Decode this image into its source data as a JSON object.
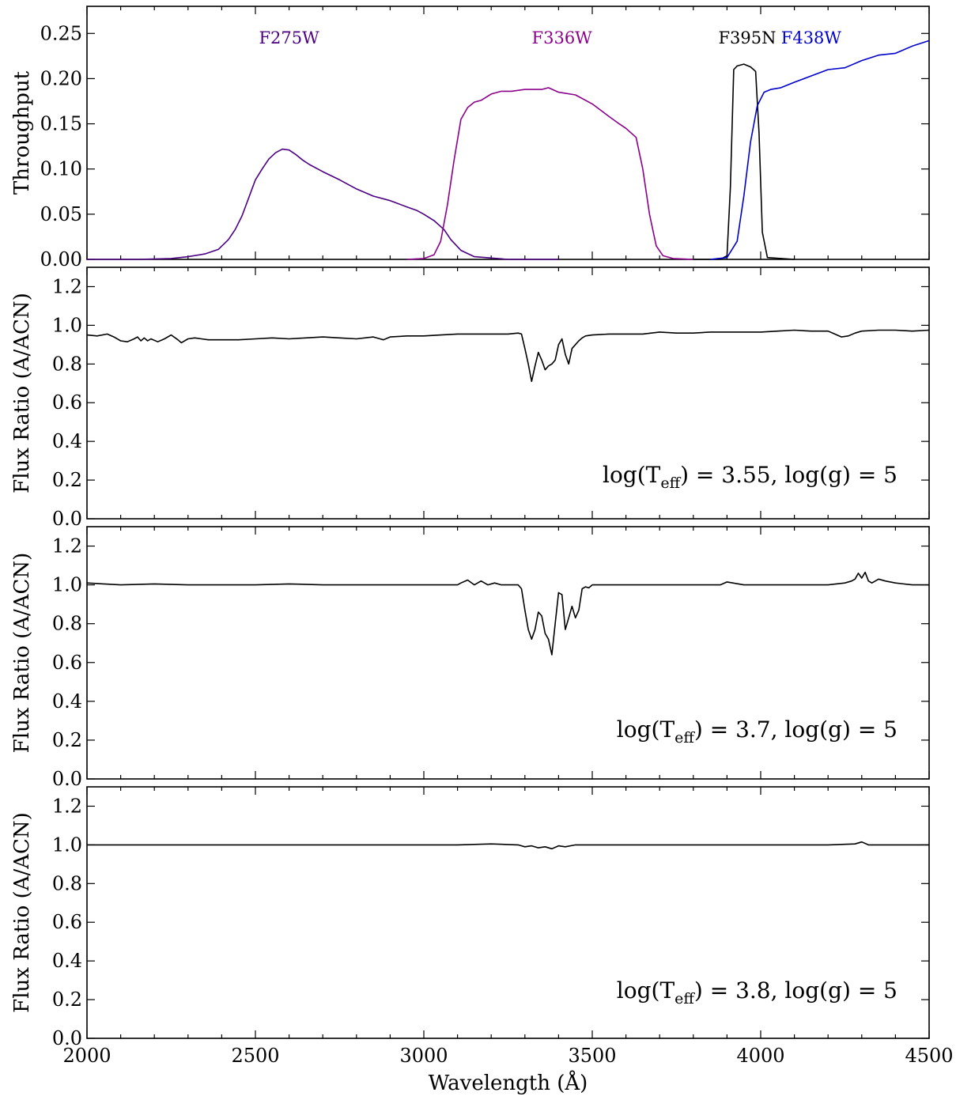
{
  "chart_data": [
    {
      "type": "line",
      "panel": "throughput",
      "ylabel": "Throughput",
      "xlim": [
        2000,
        4500
      ],
      "ylim": [
        0,
        0.28
      ],
      "x_ticks": [
        2000,
        2500,
        3000,
        3500,
        4000,
        4500
      ],
      "y_ticks": [
        "0.00",
        "0.05",
        "0.10",
        "0.15",
        "0.20",
        "0.25"
      ],
      "x_tick_labels_shown": false,
      "series": [
        {
          "name": "F275W",
          "color": "#4b0082",
          "label_at": [
            2600,
            0.245
          ],
          "x": [
            2000,
            2150,
            2250,
            2300,
            2350,
            2390,
            2420,
            2440,
            2460,
            2480,
            2500,
            2520,
            2540,
            2560,
            2580,
            2600,
            2620,
            2640,
            2660,
            2700,
            2750,
            2800,
            2850,
            2900,
            2950,
            2980,
            3000,
            3030,
            3060,
            3080,
            3110,
            3150,
            3250,
            3400
          ],
          "y": [
            0,
            0,
            0.001,
            0.003,
            0.006,
            0.011,
            0.022,
            0.033,
            0.048,
            0.068,
            0.088,
            0.1,
            0.111,
            0.118,
            0.122,
            0.121,
            0.116,
            0.11,
            0.105,
            0.097,
            0.088,
            0.078,
            0.07,
            0.065,
            0.058,
            0.054,
            0.05,
            0.043,
            0.033,
            0.022,
            0.01,
            0.003,
            0,
            0
          ]
        },
        {
          "name": "F336W",
          "color": "#8b008b",
          "label_at": [
            3410,
            0.245
          ],
          "x": [
            2950,
            3000,
            3030,
            3050,
            3070,
            3090,
            3110,
            3130,
            3150,
            3170,
            3200,
            3230,
            3260,
            3300,
            3350,
            3370,
            3400,
            3450,
            3500,
            3550,
            3580,
            3600,
            3630,
            3650,
            3670,
            3690,
            3710,
            3740,
            3800
          ],
          "y": [
            0,
            0.001,
            0.005,
            0.02,
            0.06,
            0.11,
            0.155,
            0.168,
            0.174,
            0.176,
            0.183,
            0.186,
            0.186,
            0.188,
            0.188,
            0.19,
            0.185,
            0.182,
            0.172,
            0.158,
            0.15,
            0.145,
            0.135,
            0.1,
            0.05,
            0.015,
            0.004,
            0.001,
            0
          ]
        },
        {
          "name": "F395N",
          "color": "#000000",
          "label_at": [
            3960,
            0.245
          ],
          "x": [
            3800,
            3880,
            3900,
            3910,
            3920,
            3930,
            3950,
            3970,
            3985,
            3995,
            4005,
            4020,
            4100
          ],
          "y": [
            0,
            0,
            0.004,
            0.08,
            0.21,
            0.214,
            0.216,
            0.213,
            0.208,
            0.14,
            0.03,
            0.002,
            0
          ]
        },
        {
          "name": "F438W",
          "color": "#0000cc",
          "label_at": [
            4150,
            0.245
          ],
          "x": [
            3850,
            3900,
            3930,
            3950,
            3970,
            3990,
            4010,
            4030,
            4060,
            4100,
            4150,
            4200,
            4250,
            4300,
            4350,
            4400,
            4450,
            4500
          ],
          "y": [
            0,
            0.002,
            0.02,
            0.07,
            0.13,
            0.17,
            0.185,
            0.188,
            0.19,
            0.196,
            0.203,
            0.21,
            0.212,
            0.22,
            0.226,
            0.228,
            0.236,
            0.242
          ]
        }
      ]
    },
    {
      "type": "line",
      "panel": "ratio-1",
      "ylabel": "Flux Ratio (A/ACN)",
      "xlim": [
        2000,
        4500
      ],
      "ylim": [
        0,
        1.3
      ],
      "x_ticks": [
        2000,
        2500,
        3000,
        3500,
        4000,
        4500
      ],
      "y_ticks": [
        "0.0",
        "0.2",
        "0.4",
        "0.6",
        "0.8",
        "1.0",
        "1.2"
      ],
      "x_tick_labels_shown": false,
      "annotation": {
        "prefix": "log(T",
        "sub": "eff",
        "suffix": ") = 3.55, log(g) = 5"
      },
      "series": [
        {
          "color": "#000000",
          "x": [
            2000,
            2030,
            2060,
            2080,
            2100,
            2120,
            2140,
            2150,
            2160,
            2170,
            2180,
            2190,
            2210,
            2230,
            2250,
            2270,
            2280,
            2300,
            2320,
            2340,
            2360,
            2400,
            2450,
            2500,
            2550,
            2600,
            2650,
            2700,
            2750,
            2800,
            2850,
            2870,
            2880,
            2900,
            2950,
            3000,
            3050,
            3100,
            3150,
            3200,
            3250,
            3280,
            3290,
            3300,
            3310,
            3320,
            3330,
            3340,
            3350,
            3360,
            3370,
            3380,
            3390,
            3400,
            3410,
            3420,
            3430,
            3440,
            3450,
            3460,
            3470,
            3480,
            3500,
            3550,
            3600,
            3650,
            3700,
            3750,
            3800,
            3850,
            3900,
            3950,
            4000,
            4050,
            4100,
            4150,
            4200,
            4220,
            4240,
            4260,
            4280,
            4300,
            4350,
            4400,
            4450,
            4500
          ],
          "y": [
            0.95,
            0.945,
            0.955,
            0.94,
            0.92,
            0.915,
            0.93,
            0.94,
            0.92,
            0.935,
            0.92,
            0.93,
            0.915,
            0.93,
            0.95,
            0.925,
            0.91,
            0.93,
            0.935,
            0.93,
            0.925,
            0.925,
            0.925,
            0.93,
            0.935,
            0.93,
            0.935,
            0.94,
            0.935,
            0.93,
            0.94,
            0.93,
            0.925,
            0.94,
            0.945,
            0.945,
            0.95,
            0.955,
            0.955,
            0.955,
            0.955,
            0.96,
            0.955,
            0.88,
            0.8,
            0.71,
            0.79,
            0.86,
            0.82,
            0.77,
            0.79,
            0.8,
            0.82,
            0.9,
            0.93,
            0.85,
            0.8,
            0.88,
            0.9,
            0.92,
            0.935,
            0.945,
            0.95,
            0.955,
            0.955,
            0.955,
            0.965,
            0.96,
            0.96,
            0.965,
            0.965,
            0.965,
            0.965,
            0.97,
            0.975,
            0.97,
            0.97,
            0.955,
            0.94,
            0.945,
            0.96,
            0.97,
            0.975,
            0.975,
            0.97,
            0.975
          ]
        }
      ]
    },
    {
      "type": "line",
      "panel": "ratio-2",
      "ylabel": "Flux Ratio (A/ACN)",
      "xlim": [
        2000,
        4500
      ],
      "ylim": [
        0,
        1.3
      ],
      "x_ticks": [
        2000,
        2500,
        3000,
        3500,
        4000,
        4500
      ],
      "y_ticks": [
        "0.0",
        "0.2",
        "0.4",
        "0.6",
        "0.8",
        "1.0",
        "1.2"
      ],
      "x_tick_labels_shown": false,
      "annotation": {
        "prefix": "log(T",
        "sub": "eff",
        "suffix": ") = 3.7, log(g) = 5"
      },
      "series": [
        {
          "color": "#000000",
          "x": [
            2000,
            2100,
            2200,
            2300,
            2400,
            2500,
            2600,
            2700,
            2800,
            2900,
            3000,
            3050,
            3100,
            3110,
            3130,
            3150,
            3170,
            3190,
            3210,
            3230,
            3250,
            3280,
            3290,
            3300,
            3310,
            3320,
            3330,
            3340,
            3350,
            3360,
            3370,
            3380,
            3390,
            3400,
            3410,
            3420,
            3430,
            3440,
            3450,
            3460,
            3470,
            3480,
            3490,
            3500,
            3600,
            3700,
            3800,
            3850,
            3880,
            3900,
            3950,
            4000,
            4050,
            4100,
            4150,
            4200,
            4250,
            4270,
            4280,
            4290,
            4300,
            4310,
            4320,
            4330,
            4350,
            4370,
            4400,
            4450,
            4500
          ],
          "y": [
            1.01,
            1.0,
            1.005,
            1.0,
            1.0,
            1.0,
            1.005,
            1.0,
            1.0,
            1.0,
            1.0,
            1.0,
            1.0,
            1.01,
            1.025,
            1.0,
            1.02,
            1.0,
            1.01,
            1.0,
            1.0,
            1.0,
            0.98,
            0.87,
            0.77,
            0.72,
            0.77,
            0.86,
            0.84,
            0.75,
            0.72,
            0.64,
            0.8,
            0.96,
            0.95,
            0.77,
            0.83,
            0.89,
            0.83,
            0.87,
            0.98,
            0.99,
            0.985,
            1.0,
            1.0,
            1.0,
            1.0,
            1.0,
            1.0,
            1.015,
            1.0,
            1.0,
            1.0,
            1.0,
            1.0,
            1.0,
            1.01,
            1.02,
            1.03,
            1.06,
            1.035,
            1.065,
            1.02,
            1.01,
            1.03,
            1.02,
            1.01,
            1.0,
            1.0
          ]
        }
      ]
    },
    {
      "type": "line",
      "panel": "ratio-3",
      "ylabel": "Flux Ratio (A/ACN)",
      "xlabel": "Wavelength (Å)",
      "xlim": [
        2000,
        4500
      ],
      "ylim": [
        0,
        1.3
      ],
      "x_ticks": [
        2000,
        2500,
        3000,
        3500,
        4000,
        4500
      ],
      "x_tick_labels": [
        "2000",
        "2500",
        "3000",
        "3500",
        "4000",
        "4500"
      ],
      "y_ticks": [
        "0.0",
        "0.2",
        "0.4",
        "0.6",
        "0.8",
        "1.0",
        "1.2"
      ],
      "x_tick_labels_shown": true,
      "annotation": {
        "prefix": "log(T",
        "sub": "eff",
        "suffix": ") = 3.8, log(g) = 5"
      },
      "series": [
        {
          "color": "#000000",
          "x": [
            2000,
            2500,
            3000,
            3100,
            3200,
            3280,
            3300,
            3320,
            3340,
            3360,
            3380,
            3400,
            3420,
            3450,
            3500,
            3600,
            3800,
            4000,
            4200,
            4280,
            4300,
            4320,
            4400,
            4500
          ],
          "y": [
            1.0,
            1.0,
            1.0,
            1.0,
            1.005,
            1.0,
            0.99,
            0.995,
            0.985,
            0.99,
            0.98,
            0.995,
            0.99,
            1.0,
            1.0,
            1.0,
            1.0,
            1.0,
            1.0,
            1.005,
            1.015,
            1.0,
            1.0,
            1.0
          ]
        }
      ]
    }
  ]
}
